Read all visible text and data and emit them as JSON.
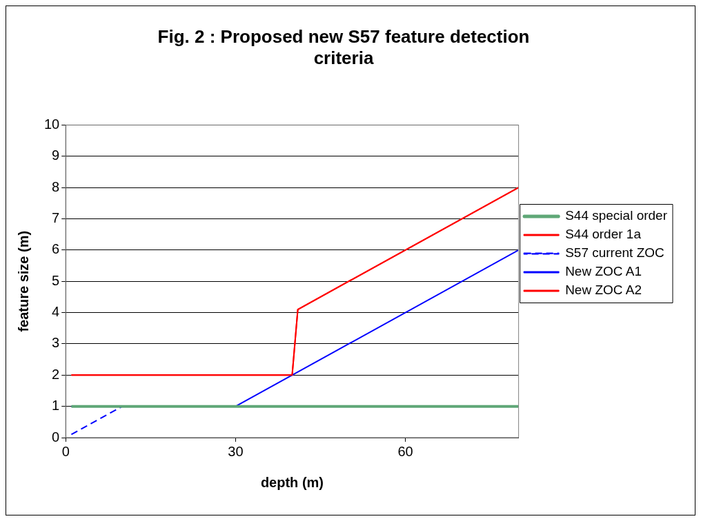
{
  "chart_data": {
    "type": "line",
    "title": "Fig. 2 : Proposed new S57 feature detection criteria",
    "xlabel": "depth (m)",
    "ylabel": "feature size (m)",
    "xlim": [
      0,
      80
    ],
    "xticks": [
      0,
      30,
      60
    ],
    "ylim": [
      0,
      10
    ],
    "yticks": [
      0,
      1,
      2,
      3,
      4,
      5,
      6,
      7,
      8,
      9,
      10
    ],
    "grid": "y",
    "legend": "right",
    "marker": "none",
    "series": [
      {
        "name": "S44 special order",
        "color": "#5fa777",
        "x": [
          1,
          80
        ],
        "values": [
          1,
          1
        ],
        "line_style": "solid"
      },
      {
        "name": "S44 order 1a",
        "color": "#ff0000",
        "x": [
          1,
          40,
          41,
          80
        ],
        "values": [
          2,
          2,
          4.1,
          8
        ],
        "line_style": "solid"
      },
      {
        "name": "S57 current ZOC",
        "color": "#0000ff",
        "x": [
          1,
          10
        ],
        "values": [
          0.1,
          1
        ],
        "line_style": "dashed"
      },
      {
        "name": "New ZOC A1",
        "color": "#0000ff",
        "x": [
          1,
          30,
          80
        ],
        "values": [
          1,
          1,
          6
        ],
        "line_style": "solid"
      },
      {
        "name": "New ZOC A2",
        "color": "#ff0000",
        "x": [
          1,
          40,
          41,
          80
        ],
        "values": [
          2,
          2,
          4.1,
          8
        ],
        "line_style": "solid"
      }
    ]
  }
}
